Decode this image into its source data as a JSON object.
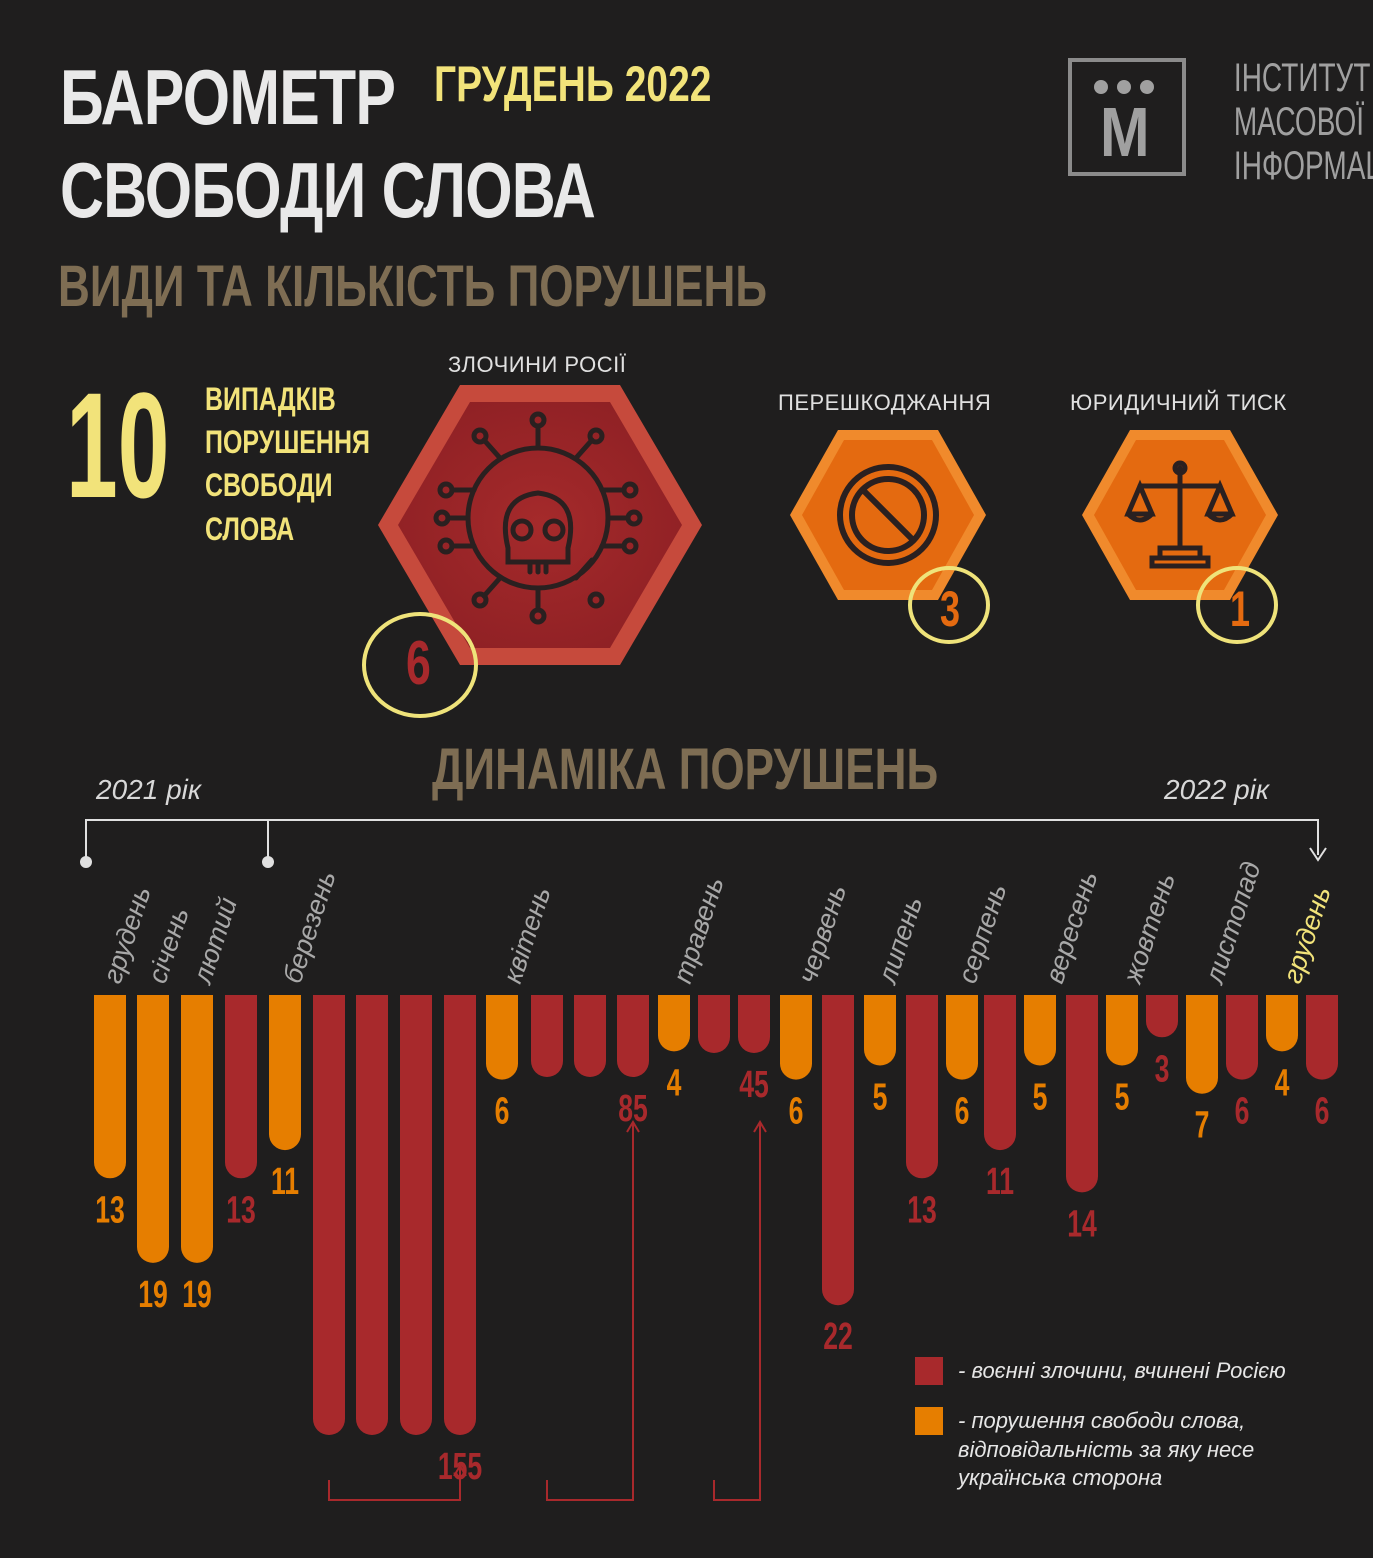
{
  "header": {
    "title_line1": "БАРОМЕТР",
    "title_line2": "СВОБОДИ СЛОВА",
    "month": "ГРУДЕНЬ 2022",
    "subtitle": "ВИДИ ТА КІЛЬКІСТЬ ПОРУШЕНЬ"
  },
  "logo": {
    "letter": "М",
    "lines": [
      "ІНСТИТУТ",
      "МАСОВОЇ",
      "ІНФОРМАЦІЇ"
    ]
  },
  "summary": {
    "total": "10",
    "description": [
      "ВИПАДКІВ",
      "ПОРУШЕННЯ",
      "СВОБОДИ",
      "СЛОВА"
    ]
  },
  "categories": [
    {
      "label": "ЗЛОЧИНИ РОСІЇ",
      "count": "6",
      "icon": "skull-virus-icon",
      "color": "#b0282b"
    },
    {
      "label": "ПЕРЕШКОДЖАННЯ",
      "count": "3",
      "icon": "prohibited-icon",
      "color": "#e86d10"
    },
    {
      "label": "ЮРИДИЧНИЙ ТИСК",
      "count": "1",
      "icon": "scales-icon",
      "color": "#e86d10"
    }
  ],
  "dynamics": {
    "title": "ДИНАМІКА ПОРУШЕНЬ",
    "year_left": "2021 рік",
    "year_right": "2022 рік"
  },
  "legend": {
    "red": "- воєнні злочини, вчинені Росією",
    "orange_lines": [
      "- порушення свободи слова,",
      "відповідальність за яку несе",
      "українська сторона"
    ]
  },
  "colors": {
    "red": "#a8292c",
    "orange": "#e67e00",
    "yellow": "#f2e37a",
    "bg": "#1f1e1e"
  },
  "chart_data": {
    "type": "bar",
    "categories": [
      "грудень",
      "січень",
      "лютий",
      "березень",
      "квітень",
      "травень",
      "червень",
      "липень",
      "серпень",
      "вересень",
      "жовтень",
      "листопад",
      "грудень"
    ],
    "highlighted_category": "грудень",
    "bars": [
      {
        "month": "грудень",
        "series": "orange",
        "value": 13,
        "label": "13"
      },
      {
        "month": "січень",
        "series": "orange",
        "value": 19,
        "label": "19"
      },
      {
        "month": "лютий",
        "series": "orange",
        "value": 19,
        "label": "19"
      },
      {
        "month": "березень",
        "series": "red",
        "value": 13,
        "label": "13"
      },
      {
        "month": "березень",
        "series": "orange",
        "value": 11,
        "label": "11"
      },
      {
        "month": "березень",
        "series": "red",
        "value": 155,
        "label": "",
        "group": "a"
      },
      {
        "month": "березень",
        "series": "red",
        "value": 155,
        "label": "",
        "group": "a"
      },
      {
        "month": "березень",
        "series": "red",
        "value": 155,
        "label": "",
        "group": "a"
      },
      {
        "month": "березень",
        "series": "red",
        "value": 155,
        "label": "155",
        "group": "a"
      },
      {
        "month": "квітень",
        "series": "orange",
        "value": 6,
        "label": "6"
      },
      {
        "month": "квітень",
        "series": "red",
        "value": 85,
        "label": "",
        "group": "b"
      },
      {
        "month": "квітень",
        "series": "red",
        "value": 85,
        "label": "",
        "group": "b"
      },
      {
        "month": "квітень",
        "series": "red",
        "value": 85,
        "label": "85",
        "group": "b"
      },
      {
        "month": "травень",
        "series": "orange",
        "value": 4,
        "label": "4"
      },
      {
        "month": "травень",
        "series": "red",
        "value": 45,
        "label": "",
        "group": "c"
      },
      {
        "month": "травень",
        "series": "red",
        "value": 45,
        "label": "45",
        "group": "c"
      },
      {
        "month": "травень",
        "series": "orange",
        "value": 6,
        "label": "6"
      },
      {
        "month": "червень",
        "series": "red",
        "value": 22,
        "label": "22"
      },
      {
        "month": "червень",
        "series": "orange",
        "value": 5,
        "label": "5"
      },
      {
        "month": "липень",
        "series": "red",
        "value": 13,
        "label": "13"
      },
      {
        "month": "липень",
        "series": "orange",
        "value": 6,
        "label": "6"
      },
      {
        "month": "серпень",
        "series": "red",
        "value": 11,
        "label": "11"
      },
      {
        "month": "серпень",
        "series": "orange",
        "value": 5,
        "label": "5"
      },
      {
        "month": "вересень",
        "series": "red",
        "value": 14,
        "label": "14"
      },
      {
        "month": "вересень",
        "series": "orange",
        "value": 5,
        "label": "5"
      },
      {
        "month": "жовтень",
        "series": "red",
        "value": 3,
        "label": "3"
      },
      {
        "month": "жовтень",
        "series": "orange",
        "value": 7,
        "label": "7"
      },
      {
        "month": "листопад",
        "series": "red",
        "value": 6,
        "label": "6"
      },
      {
        "month": "грудень",
        "series": "orange",
        "value": 4,
        "label": "4"
      },
      {
        "month": "грудень",
        "series": "red",
        "value": 6,
        "label": "6"
      }
    ]
  }
}
